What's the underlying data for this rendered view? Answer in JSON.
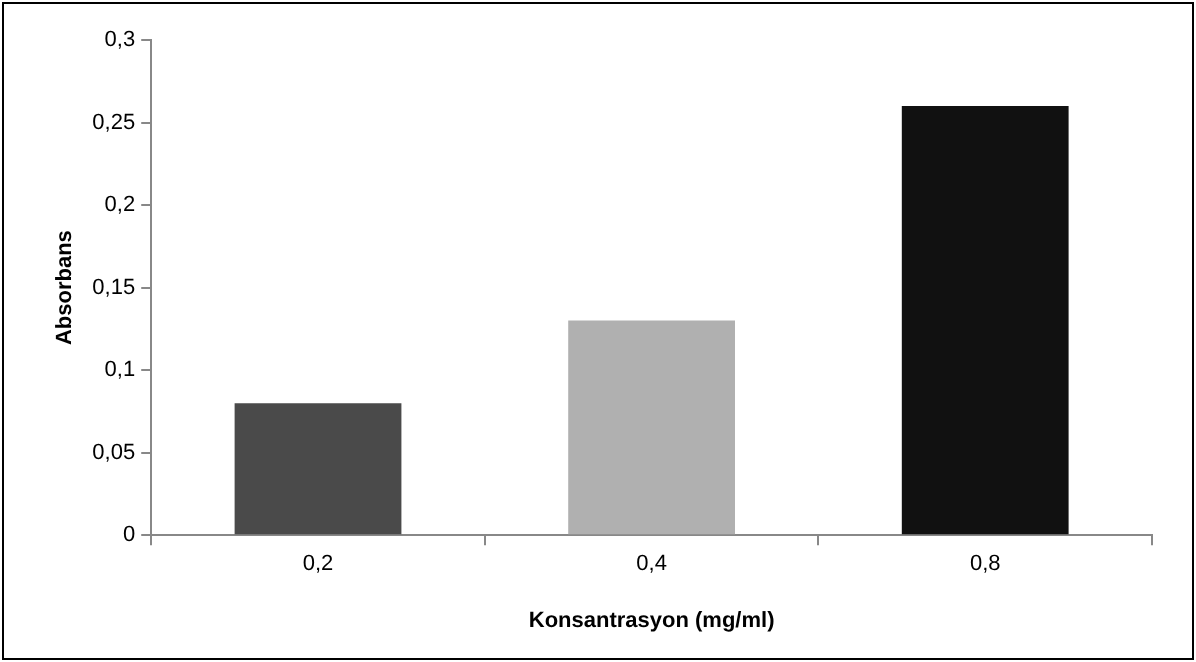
{
  "chart_data": {
    "type": "bar",
    "xlabel": "Konsantrasyon (mg/ml)",
    "ylabel": "Absorbans",
    "categories": [
      "0,2",
      "0,4",
      "0,8"
    ],
    "values": [
      0.08,
      0.13,
      0.26
    ],
    "colors": [
      "#4a4a4a",
      "#b0b0b0",
      "#111111"
    ],
    "ylim": [
      0,
      0.3
    ],
    "yticks": [
      0,
      {
        "value": 0.05,
        "label": "0,05"
      },
      {
        "value": 0.1,
        "label": "0,1"
      },
      {
        "value": 0.15,
        "label": "0,15"
      },
      {
        "value": 0.2,
        "label": "0,2"
      },
      {
        "value": 0.25,
        "label": "0,25"
      },
      {
        "value": 0.3,
        "label": "0,3"
      }
    ],
    "grid": false,
    "legend": false
  }
}
